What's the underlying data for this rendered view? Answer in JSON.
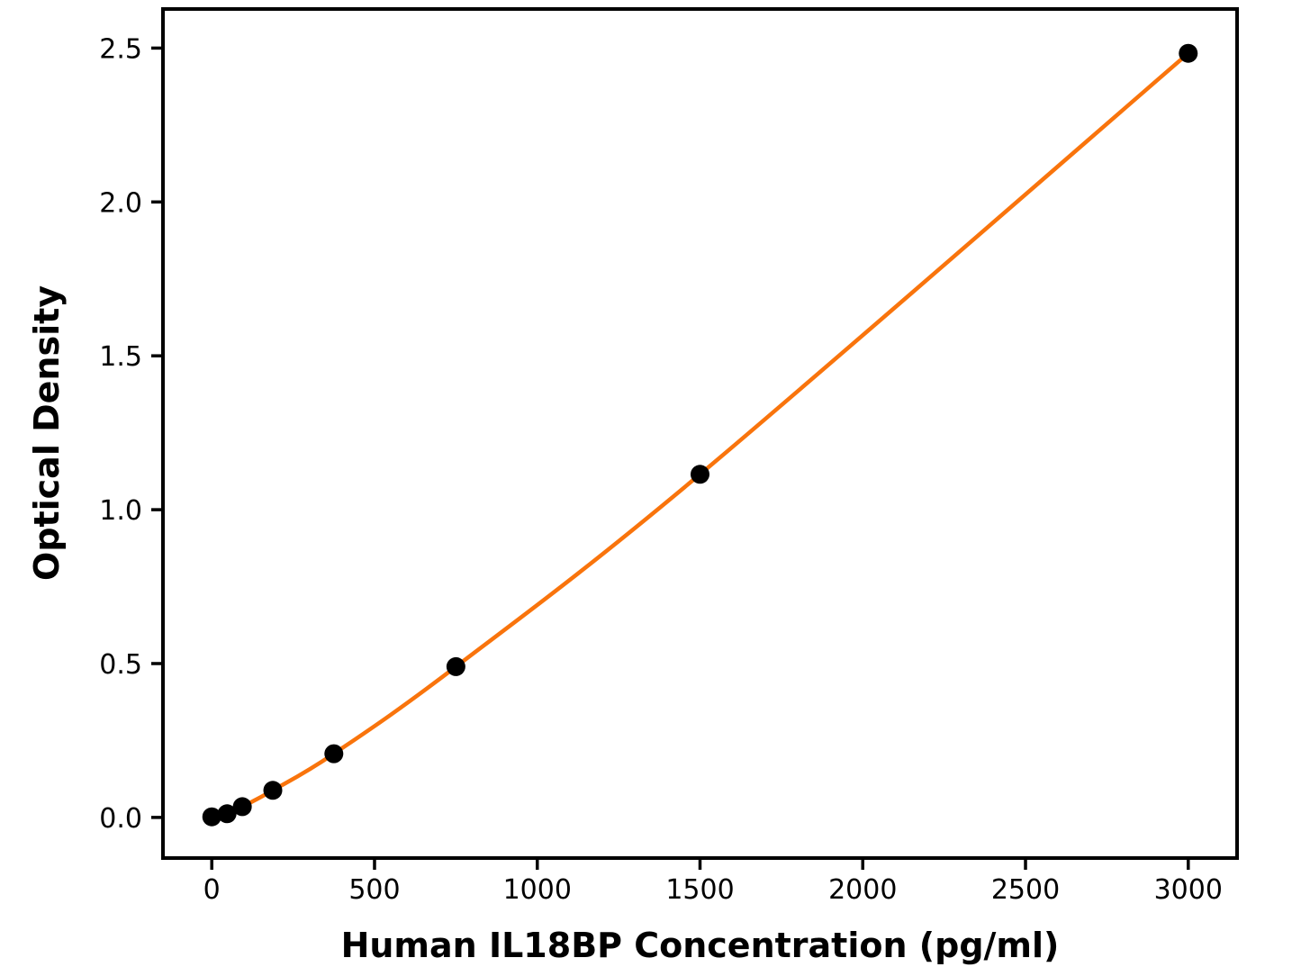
{
  "figure": {
    "background_color": "#FFFFFF"
  },
  "chart_data": {
    "type": "scatter",
    "title": "",
    "xlabel": "Human IL18BP Concentration (pg/ml)",
    "ylabel": "Optical Density",
    "series": [
      {
        "name": "standard-curve",
        "x": [
          0,
          46.9,
          93.8,
          187.5,
          375,
          750,
          1500,
          3000
        ],
        "y": [
          0.002,
          0.012,
          0.035,
          0.088,
          0.207,
          0.49,
          1.115,
          2.483
        ],
        "marker": "circle",
        "marker_color": "#000000",
        "marker_radius": 10.5,
        "line_color": "#F9740C",
        "line_width": 4.5,
        "fit": "smooth"
      }
    ],
    "x_ticks": {
      "values": [
        0,
        500,
        1000,
        1500,
        2000,
        2500,
        3000
      ],
      "labels": [
        "0",
        "500",
        "1000",
        "1500",
        "2000",
        "2500",
        "3000"
      ]
    },
    "y_ticks": {
      "values": [
        0,
        0.5,
        1,
        1.5,
        2,
        2.5
      ],
      "labels": [
        "0.0",
        "0.5",
        "1.0",
        "1.5",
        "2.0",
        "2.5"
      ]
    },
    "xlim": [
      -150,
      3150
    ],
    "ylim": [
      -0.132,
      2.627
    ],
    "grid": false,
    "legend_position": "none",
    "axis_color": "#000000",
    "frame": "full-box"
  }
}
